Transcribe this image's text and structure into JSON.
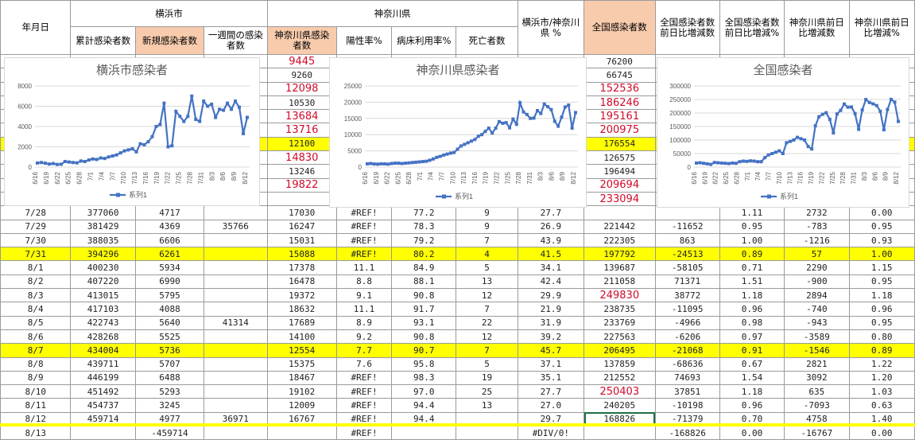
{
  "header": {
    "date_col": "年月日",
    "group_yokohama": "横浜市",
    "group_kanagawa": "神奈川県",
    "col_yk_total": "累計感染者数",
    "col_yk_new": "新規感染者数",
    "col_yk_week": "一週間の感染者数",
    "col_kn_cases": "神奈川県感染者数",
    "col_kn_pos": "陽性率%",
    "col_kn_bed": "病床利用率%",
    "col_kn_death": "死亡者数",
    "col_ratio": "横浜市/神奈川県 %",
    "col_nat": "全国感染者数",
    "col_nat_diff": "全国感染者数前日比増減数",
    "col_nat_pct": "全国感染者数前日比増減%",
    "col_kn_diff": "神奈川県前日比増減数",
    "col_kn_pct": "神奈川県前日比増減%"
  },
  "top_rows": [
    {
      "kn": "9445",
      "kn_big": true,
      "nat": "76200",
      "nat_big": false,
      "hl": false
    },
    {
      "kn": "9260",
      "kn_big": false,
      "nat": "66745",
      "nat_big": false,
      "hl": false
    },
    {
      "kn": "12098",
      "kn_big": true,
      "nat": "152536",
      "nat_big": true,
      "hl": false
    },
    {
      "kn": "10530",
      "kn_big": false,
      "nat": "186246",
      "nat_big": true,
      "hl": false
    },
    {
      "kn": "13684",
      "kn_big": true,
      "nat": "195161",
      "nat_big": true,
      "hl": false
    },
    {
      "kn": "13716",
      "kn_big": true,
      "nat": "200975",
      "nat_big": true,
      "hl": false
    },
    {
      "kn": "12100",
      "kn_big": false,
      "nat": "176554",
      "nat_big": false,
      "hl": true
    },
    {
      "kn": "14830",
      "kn_big": true,
      "nat": "126575",
      "nat_big": false,
      "hl": false
    },
    {
      "kn": "13246",
      "kn_big": false,
      "nat": "196494",
      "nat_big": false,
      "hl": false
    },
    {
      "kn": "19822",
      "kn_big": true,
      "nat": "209694",
      "nat_big": true,
      "hl": false
    },
    {
      "kn": "",
      "kn_big": false,
      "nat": "233094",
      "nat_big": true,
      "hl": false
    }
  ],
  "rows": [
    {
      "d": "7/28",
      "t": "377060",
      "n": "4717",
      "w": "",
      "kc": "17030",
      "p": "#REF!",
      "b": "77.2",
      "de": "9",
      "r": "27.7",
      "na": "",
      "nb": false,
      "nd": "",
      "np": "1.11",
      "kd": "2732",
      "kp": "0.00",
      "hl": false
    },
    {
      "d": "7/29",
      "t": "381429",
      "n": "4369",
      "w": "35766",
      "kc": "16247",
      "p": "#REF!",
      "b": "78.3",
      "de": "9",
      "r": "26.9",
      "na": "221442",
      "nb": false,
      "nd": "-11652",
      "np": "0.95",
      "kd": "-783",
      "kp": "0.95",
      "hl": false
    },
    {
      "d": "7/30",
      "t": "388035",
      "n": "6606",
      "w": "",
      "kc": "15031",
      "p": "#REF!",
      "b": "79.2",
      "de": "7",
      "r": "43.9",
      "na": "222305",
      "nb": false,
      "nd": "863",
      "np": "1.00",
      "kd": "-1216",
      "kp": "0.93",
      "hl": false
    },
    {
      "d": "7/31",
      "t": "394296",
      "n": "6261",
      "w": "",
      "kc": "15088",
      "p": "#REF!",
      "b": "80.2",
      "de": "4",
      "r": "41.5",
      "na": "197792",
      "nb": false,
      "nd": "-24513",
      "np": "0.89",
      "kd": "57",
      "kp": "1.00",
      "hl": true
    },
    {
      "d": "8/1",
      "t": "400230",
      "n": "5934",
      "w": "",
      "kc": "17378",
      "p": "11.1",
      "b": "84.9",
      "de": "5",
      "r": "34.1",
      "na": "139687",
      "nb": false,
      "nd": "-58105",
      "np": "0.71",
      "kd": "2290",
      "kp": "1.15",
      "hl": false
    },
    {
      "d": "8/2",
      "t": "407220",
      "n": "6990",
      "w": "",
      "kc": "16478",
      "p": "8.8",
      "b": "88.1",
      "de": "13",
      "r": "42.4",
      "na": "211058",
      "nb": false,
      "nd": "71371",
      "np": "1.51",
      "kd": "-900",
      "kp": "0.95",
      "hl": false
    },
    {
      "d": "8/3",
      "t": "413015",
      "n": "5795",
      "w": "",
      "kc": "19372",
      "p": "9.1",
      "b": "90.8",
      "de": "12",
      "r": "29.9",
      "na": "249830",
      "nb": true,
      "nd": "38772",
      "np": "1.18",
      "kd": "2894",
      "kp": "1.18",
      "hl": false
    },
    {
      "d": "8/4",
      "t": "417103",
      "n": "4088",
      "w": "",
      "kc": "18632",
      "p": "11.1",
      "b": "91.7",
      "de": "7",
      "r": "21.9",
      "na": "238735",
      "nb": false,
      "nd": "-11095",
      "np": "0.96",
      "kd": "-740",
      "kp": "0.96",
      "hl": false
    },
    {
      "d": "8/5",
      "t": "422743",
      "n": "5640",
      "w": "41314",
      "kc": "17689",
      "p": "8.9",
      "b": "93.1",
      "de": "22",
      "r": "31.9",
      "na": "233769",
      "nb": false,
      "nd": "-4966",
      "np": "0.98",
      "kd": "-943",
      "kp": "0.95",
      "hl": false
    },
    {
      "d": "8/6",
      "t": "428268",
      "n": "5525",
      "w": "",
      "kc": "14100",
      "p": "9.2",
      "b": "90.8",
      "de": "12",
      "r": "39.2",
      "na": "227563",
      "nb": false,
      "nd": "-6206",
      "np": "0.97",
      "kd": "-3589",
      "kp": "0.80",
      "hl": false
    },
    {
      "d": "8/7",
      "t": "434004",
      "n": "5736",
      "w": "",
      "kc": "12554",
      "p": "7.7",
      "b": "90.7",
      "de": "7",
      "r": "45.7",
      "na": "206495",
      "nb": false,
      "nd": "-21068",
      "np": "0.91",
      "kd": "-1546",
      "kp": "0.89",
      "hl": true
    },
    {
      "d": "8/8",
      "t": "439711",
      "n": "5707",
      "w": "",
      "kc": "15375",
      "p": "7.6",
      "b": "95.8",
      "de": "5",
      "r": "37.1",
      "na": "137859",
      "nb": false,
      "nd": "-68636",
      "np": "0.67",
      "kd": "2821",
      "kp": "1.22",
      "hl": false
    },
    {
      "d": "8/9",
      "t": "446199",
      "n": "6488",
      "w": "",
      "kc": "18467",
      "p": "#REF!",
      "b": "98.3",
      "de": "19",
      "r": "35.1",
      "na": "212552",
      "nb": false,
      "nd": "74693",
      "np": "1.54",
      "kd": "3092",
      "kp": "1.20",
      "hl": false
    },
    {
      "d": "8/10",
      "t": "451492",
      "n": "5293",
      "w": "",
      "kc": "19102",
      "p": "#REF!",
      "b": "97.0",
      "de": "25",
      "r": "27.7",
      "na": "250403",
      "nb": true,
      "nd": "37851",
      "np": "1.18",
      "kd": "635",
      "kp": "1.03",
      "hl": false
    },
    {
      "d": "8/11",
      "t": "454737",
      "n": "3245",
      "w": "",
      "kc": "12009",
      "p": "#REF!",
      "b": "94.4",
      "de": "13",
      "r": "27.0",
      "na": "240205",
      "nb": false,
      "nd": "-10198",
      "np": "0.96",
      "kd": "-7093",
      "kp": "0.63",
      "hl": false
    },
    {
      "d": "8/12",
      "t": "459714",
      "n": "4977",
      "w": "36971",
      "kc": "16767",
      "p": "#REF!",
      "b": "94.4",
      "de": "",
      "r": "29.7",
      "na": "168826",
      "nb": false,
      "nd": "-71379",
      "np": "0.70",
      "kd": "4758",
      "kp": "1.40",
      "hl": false
    },
    {
      "d": "8/13",
      "t": "",
      "n": "-459714",
      "w": "",
      "kc": "",
      "p": "#REF!",
      "b": "",
      "de": "",
      "r": "#DIV/0!",
      "na": "",
      "nb": false,
      "nd": "-168826",
      "np": "0.00",
      "kd": "-16767",
      "kp": "0.00",
      "hl": false
    }
  ],
  "chart_data": [
    {
      "type": "line",
      "title": "横浜市感染者",
      "series": [
        {
          "name": "系列1",
          "values": [
            400,
            450,
            380,
            300,
            350,
            260,
            280,
            550,
            500,
            450,
            420,
            600,
            550,
            700,
            800,
            750,
            900,
            850,
            1000,
            1100,
            1200,
            1400,
            1600,
            1700,
            1800,
            1500,
            2300,
            2200,
            2500,
            3000,
            4000,
            4200,
            6300,
            2000,
            2100,
            5500,
            5000,
            4500,
            5000,
            7000,
            4700,
            4500,
            6500,
            6000,
            6200,
            4900,
            5700,
            5600,
            6300,
            5700,
            6500,
            5900,
            3300,
            4900
          ]
        }
      ],
      "x_ticks": [
        "6/16",
        "6/19",
        "6/22",
        "6/25",
        "6/28",
        "7/1",
        "7/4",
        "7/7",
        "7/10",
        "7/13",
        "7/16",
        "7/19",
        "7/22",
        "7/25",
        "7/28",
        "7/31",
        "8/3",
        "8/6",
        "8/9",
        "8/12"
      ],
      "ylim": [
        0,
        8000
      ],
      "yticks": [
        "0",
        "2000",
        "4000",
        "6000",
        "8000"
      ],
      "legend": "bottom"
    },
    {
      "type": "line",
      "title": "神奈川県感染者",
      "series": [
        {
          "name": "系列1",
          "values": [
            1000,
            1100,
            950,
            900,
            1000,
            1000,
            900,
            1100,
            1200,
            1200,
            1100,
            1200,
            1300,
            1400,
            1500,
            1600,
            1700,
            1800,
            2100,
            2500,
            3000,
            3300,
            3700,
            4000,
            4300,
            4500,
            5500,
            6500,
            7000,
            7500,
            8000,
            8500,
            9500,
            10000,
            11000,
            12000,
            10500,
            12000,
            14000,
            13500,
            13700,
            12100,
            14800,
            13200,
            19800,
            17000,
            16200,
            15000,
            15100,
            17400,
            16500,
            19400,
            18600,
            17700,
            14100,
            12600,
            15400,
            18500,
            19100,
            12000,
            16800
          ]
        }
      ],
      "x_ticks": [
        "6/16",
        "6/19",
        "6/22",
        "6/25",
        "6/28",
        "7/1",
        "7/4",
        "7/7",
        "7/10",
        "7/13",
        "7/16",
        "7/19",
        "7/22",
        "7/25",
        "7/28",
        "7/31",
        "8/3",
        "8/6",
        "8/9",
        "8/12"
      ],
      "ylim": [
        0,
        25000
      ],
      "yticks": [
        "0",
        "5000",
        "10000",
        "15000",
        "20000",
        "25000"
      ],
      "legend": "bottom"
    },
    {
      "type": "line",
      "title": "全国感染者",
      "series": [
        {
          "name": "系列1",
          "values": [
            15000,
            16000,
            14000,
            12000,
            10000,
            17000,
            16000,
            15000,
            14000,
            13000,
            15000,
            14000,
            20000,
            22000,
            21000,
            23000,
            22000,
            20000,
            20000,
            35000,
            45000,
            50000,
            55000,
            60000,
            50000,
            90000,
            95000,
            100000,
            110000,
            105000,
            100000,
            76200,
            66745,
            152536,
            186246,
            195161,
            200975,
            176554,
            126575,
            196494,
            209694,
            233094,
            221442,
            222305,
            197792,
            139687,
            211058,
            249830,
            238735,
            233769,
            227563,
            206495,
            137859,
            212552,
            250403,
            240205,
            168826
          ]
        }
      ],
      "x_ticks": [
        "6/16",
        "6/19",
        "6/22",
        "6/25",
        "6/28",
        "7/1",
        "7/4",
        "7/7",
        "7/10",
        "7/13",
        "7/16",
        "7/19",
        "7/22",
        "7/25",
        "7/28",
        "7/31",
        "8/3",
        "8/6",
        "8/9",
        "8/12"
      ],
      "ylim": [
        0,
        300000
      ],
      "yticks": [
        "0",
        "50000",
        "100000",
        "150000",
        "200000",
        "250000",
        "300000"
      ],
      "legend": "bottom"
    }
  ]
}
